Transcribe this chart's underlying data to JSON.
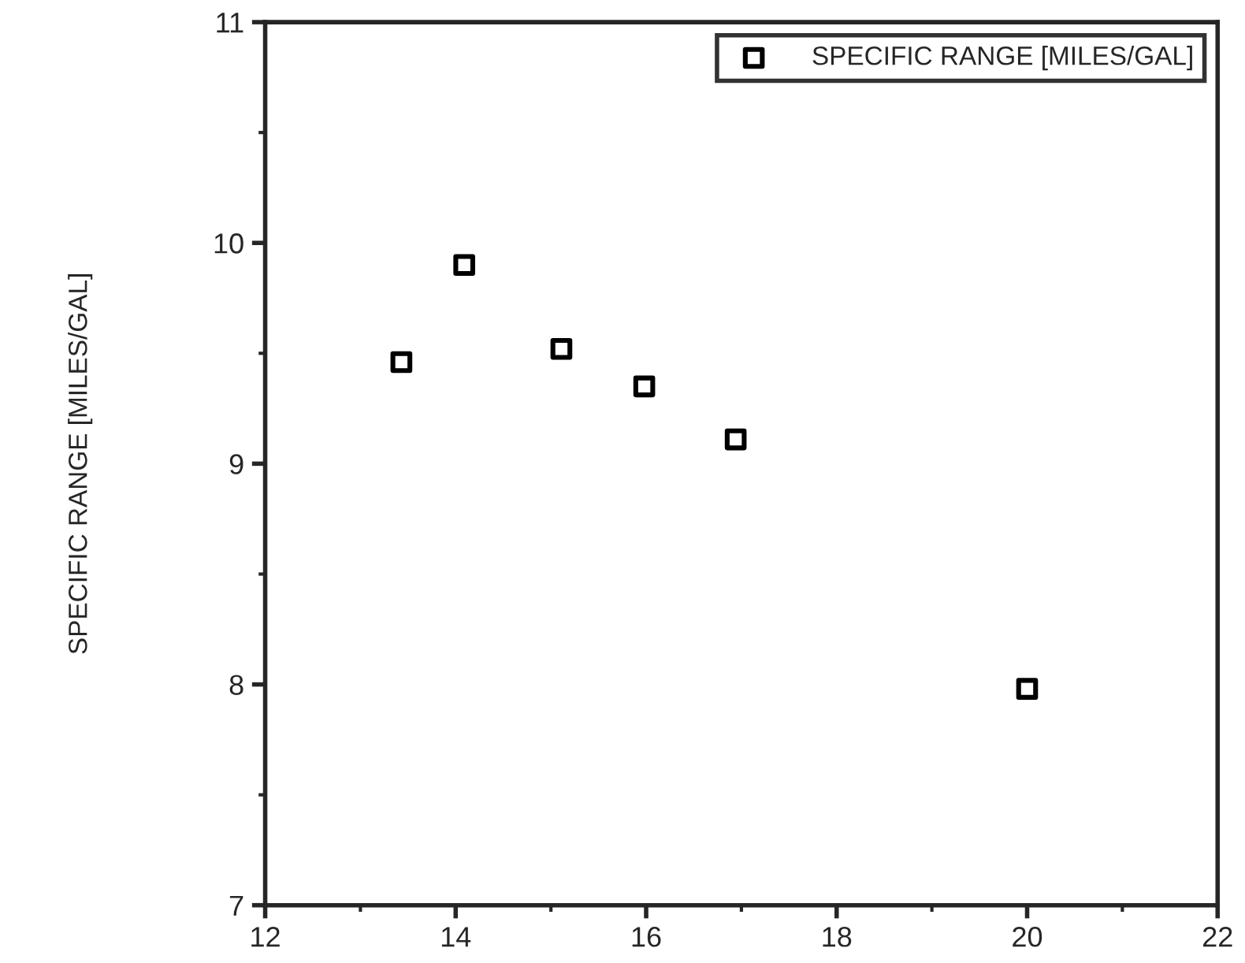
{
  "chart_data": {
    "type": "scatter",
    "ylabel": "SPECIFIC RANGE [MILES/GAL]",
    "x": [
      13.43,
      14.09,
      15.11,
      15.98,
      16.94,
      20.0
    ],
    "series": [
      {
        "name": "SPECIFIC RANGE [MILES/GAL]",
        "color": "#000000",
        "values": [
          9.46,
          9.9,
          9.52,
          9.35,
          9.11,
          7.98
        ]
      }
    ],
    "xlim": [
      12,
      22
    ],
    "xticks": [
      12,
      14,
      16,
      18,
      20,
      22
    ],
    "ylim": [
      7,
      11
    ],
    "yticks": [
      7,
      8,
      9,
      10,
      11
    ],
    "marker": "square",
    "legend": "top right",
    "grid": false
  }
}
